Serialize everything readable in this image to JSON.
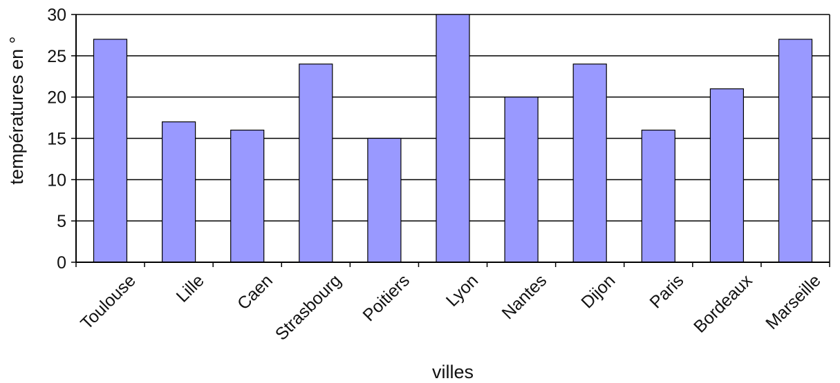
{
  "chart_data": {
    "type": "bar",
    "categories": [
      "Toulouse",
      "Lille",
      "Caen",
      "Strasbourg",
      "Poitiers",
      "Lyon",
      "Nantes",
      "Dijon",
      "Paris",
      "Bordeaux",
      "Marseille"
    ],
    "values": [
      27,
      17,
      16,
      24,
      15,
      30,
      20,
      24,
      16,
      21,
      27
    ],
    "xlabel": "villes",
    "ylabel": "températures en °",
    "ylim": [
      0,
      30
    ],
    "yticks": [
      0,
      5,
      10,
      15,
      20,
      25,
      30
    ],
    "grid": true,
    "legend": "none",
    "colors": {
      "bar": "#9999ff",
      "grid": "#000000",
      "background": "#ffffff"
    }
  }
}
